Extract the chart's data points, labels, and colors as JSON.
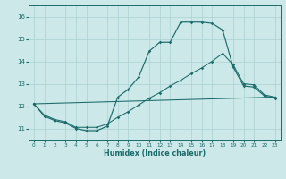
{
  "xlabel": "Humidex (Indice chaleur)",
  "bg_color": "#cce8e8",
  "grid_color": "#aad0d0",
  "line_color": "#1a6b6b",
  "xlim": [
    -0.5,
    23.5
  ],
  "ylim": [
    10.5,
    16.5
  ],
  "yticks": [
    11,
    12,
    13,
    14,
    15,
    16
  ],
  "xticks": [
    0,
    1,
    2,
    3,
    4,
    5,
    6,
    7,
    8,
    9,
    10,
    11,
    12,
    13,
    14,
    15,
    16,
    17,
    18,
    19,
    20,
    21,
    22,
    23
  ],
  "curve1_x": [
    0,
    1,
    2,
    3,
    4,
    5,
    6,
    7,
    8,
    9,
    10,
    11,
    12,
    13,
    14,
    15,
    16,
    17,
    18,
    19,
    20,
    21,
    22,
    23
  ],
  "curve1_y": [
    12.1,
    11.55,
    11.35,
    11.25,
    11.0,
    10.9,
    10.9,
    11.1,
    12.4,
    12.75,
    13.3,
    14.45,
    14.85,
    14.85,
    15.75,
    15.75,
    15.75,
    15.7,
    15.4,
    13.75,
    12.9,
    12.85,
    12.45,
    12.35
  ],
  "curve2_x": [
    0,
    1,
    2,
    3,
    4,
    5,
    6,
    7,
    8,
    9,
    10,
    11,
    12,
    13,
    14,
    15,
    16,
    17,
    18,
    19,
    20,
    21,
    22,
    23
  ],
  "curve2_y": [
    12.1,
    11.6,
    11.4,
    11.3,
    11.05,
    11.05,
    11.05,
    11.2,
    11.5,
    11.75,
    12.05,
    12.35,
    12.6,
    12.9,
    13.15,
    13.45,
    13.7,
    14.0,
    14.35,
    13.85,
    13.0,
    12.95,
    12.5,
    12.4
  ],
  "curve3_x": [
    0,
    23
  ],
  "curve3_y": [
    12.1,
    12.4
  ]
}
